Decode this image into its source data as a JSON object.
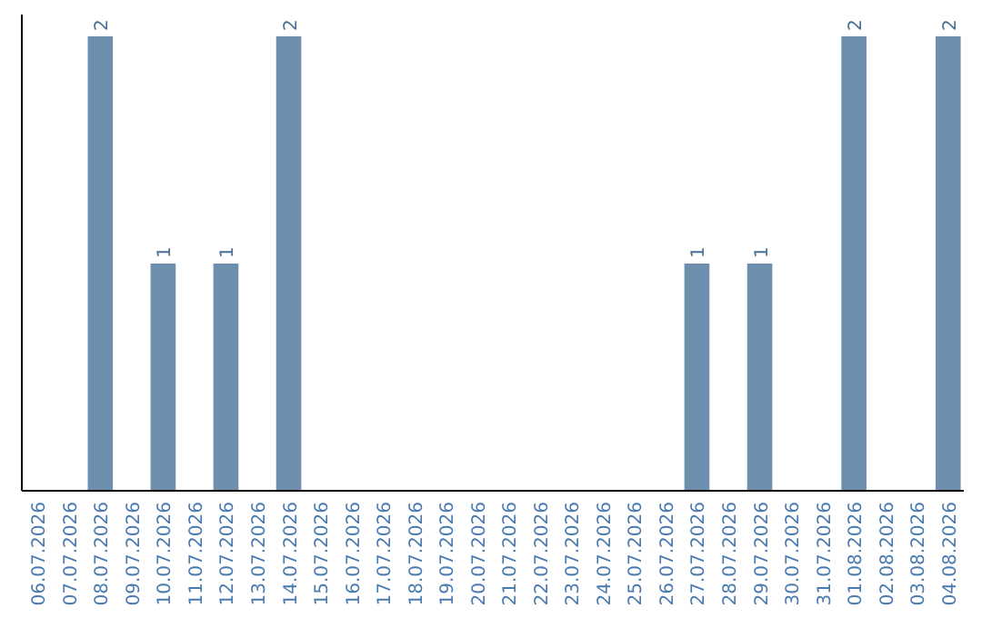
{
  "chart_data": {
    "type": "bar",
    "categories": [
      "06.07.2026",
      "07.07.2026",
      "08.07.2026",
      "09.07.2026",
      "10.07.2026",
      "11.07.2026",
      "12.07.2026",
      "13.07.2026",
      "14.07.2026",
      "15.07.2026",
      "16.07.2026",
      "17.07.2026",
      "18.07.2026",
      "19.07.2026",
      "20.07.2026",
      "21.07.2026",
      "22.07.2026",
      "23.07.2026",
      "24.07.2026",
      "25.07.2026",
      "26.07.2026",
      "27.07.2026",
      "28.07.2026",
      "29.07.2026",
      "30.07.2026",
      "31.07.2026",
      "01.08.2026",
      "02.08.2026",
      "03.08.2026",
      "04.08.2026"
    ],
    "values": [
      0,
      0,
      2,
      0,
      1,
      0,
      1,
      0,
      2,
      0,
      0,
      0,
      0,
      0,
      0,
      0,
      0,
      0,
      0,
      0,
      0,
      1,
      0,
      1,
      0,
      0,
      2,
      0,
      0,
      2
    ],
    "value_labels": [
      null,
      null,
      "2",
      null,
      "1",
      null,
      "1",
      null,
      "2",
      null,
      null,
      null,
      null,
      null,
      null,
      null,
      null,
      null,
      null,
      null,
      null,
      "1",
      null,
      "1",
      null,
      null,
      "2",
      null,
      null,
      "2"
    ],
    "color": "#6d8eac",
    "tick_labels": "x"
  }
}
